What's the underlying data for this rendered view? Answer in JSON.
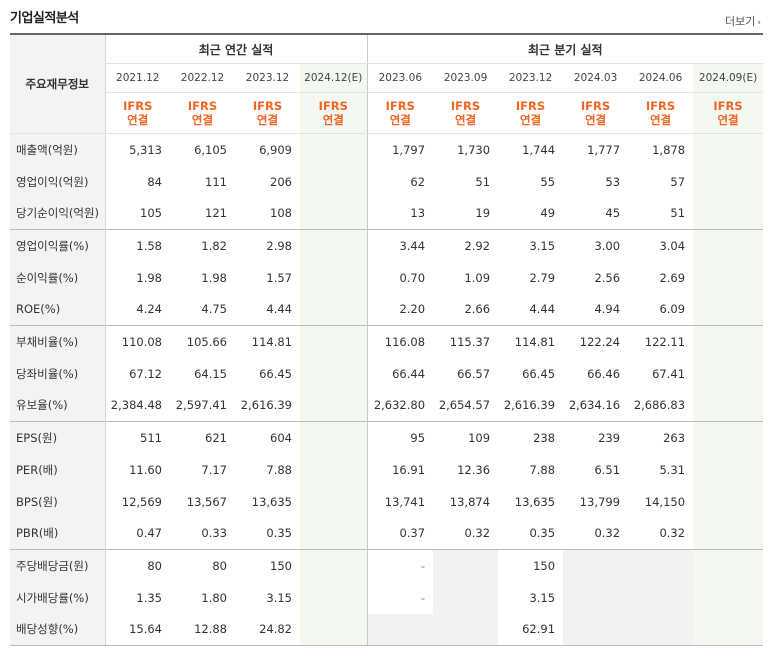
{
  "header": {
    "title": "기업실적분석",
    "more": "더보기"
  },
  "table": {
    "row_header_label": "주요재무정보",
    "annual_group": "최근 연간 실적",
    "quarter_group": "최근 분기 실적",
    "annual_periods": [
      "2021.12",
      "2022.12",
      "2023.12",
      "2024.12(E)"
    ],
    "quarter_periods": [
      "2023.06",
      "2023.09",
      "2023.12",
      "2024.03",
      "2024.06",
      "2024.09(E)"
    ],
    "ifrs_top": "IFRS",
    "ifrs_bottom": "연결",
    "rows": [
      {
        "label": "매출액(억원)",
        "values": [
          "5,313",
          "6,105",
          "6,909",
          "",
          "1,797",
          "1,730",
          "1,744",
          "1,777",
          "1,878",
          ""
        ]
      },
      {
        "label": "영업이익(억원)",
        "values": [
          "84",
          "111",
          "206",
          "",
          "62",
          "51",
          "55",
          "53",
          "57",
          ""
        ]
      },
      {
        "label": "당기순이익(억원)",
        "values": [
          "105",
          "121",
          "108",
          "",
          "13",
          "19",
          "49",
          "45",
          "51",
          ""
        ]
      },
      {
        "label": "영업이익률(%)",
        "values": [
          "1.58",
          "1.82",
          "2.98",
          "",
          "3.44",
          "2.92",
          "3.15",
          "3.00",
          "3.04",
          ""
        ]
      },
      {
        "label": "순이익률(%)",
        "values": [
          "1.98",
          "1.98",
          "1.57",
          "",
          "0.70",
          "1.09",
          "2.79",
          "2.56",
          "2.69",
          ""
        ]
      },
      {
        "label": "ROE(%)",
        "values": [
          "4.24",
          "4.75",
          "4.44",
          "",
          "2.20",
          "2.66",
          "4.44",
          "4.94",
          "6.09",
          ""
        ]
      },
      {
        "label": "부채비율(%)",
        "values": [
          "110.08",
          "105.66",
          "114.81",
          "",
          "116.08",
          "115.37",
          "114.81",
          "122.24",
          "122.11",
          ""
        ]
      },
      {
        "label": "당좌비율(%)",
        "values": [
          "67.12",
          "64.15",
          "66.45",
          "",
          "66.44",
          "66.57",
          "66.45",
          "66.46",
          "67.41",
          ""
        ]
      },
      {
        "label": "유보율(%)",
        "values": [
          "2,384.48",
          "2,597.41",
          "2,616.39",
          "",
          "2,632.80",
          "2,654.57",
          "2,616.39",
          "2,634.16",
          "2,686.83",
          ""
        ]
      },
      {
        "label": "EPS(원)",
        "values": [
          "511",
          "621",
          "604",
          "",
          "95",
          "109",
          "238",
          "239",
          "263",
          ""
        ]
      },
      {
        "label": "PER(배)",
        "values": [
          "11.60",
          "7.17",
          "7.88",
          "",
          "16.91",
          "12.36",
          "7.88",
          "6.51",
          "5.31",
          ""
        ]
      },
      {
        "label": "BPS(원)",
        "values": [
          "12,569",
          "13,567",
          "13,635",
          "",
          "13,741",
          "13,874",
          "13,635",
          "13,799",
          "14,150",
          ""
        ]
      },
      {
        "label": "PBR(배)",
        "values": [
          "0.47",
          "0.33",
          "0.35",
          "",
          "0.37",
          "0.32",
          "0.35",
          "0.32",
          "0.32",
          ""
        ]
      },
      {
        "label": "주당배당금(원)",
        "values": [
          "80",
          "80",
          "150",
          "",
          "-",
          "",
          "150",
          "",
          "",
          ""
        ]
      },
      {
        "label": "시가배당률(%)",
        "values": [
          "1.35",
          "1.80",
          "3.15",
          "",
          "-",
          "",
          "3.15",
          "",
          "",
          ""
        ]
      },
      {
        "label": "배당성향(%)",
        "values": [
          "15.64",
          "12.88",
          "24.82",
          "",
          "",
          "",
          "62.91",
          "",
          "",
          ""
        ]
      }
    ]
  }
}
